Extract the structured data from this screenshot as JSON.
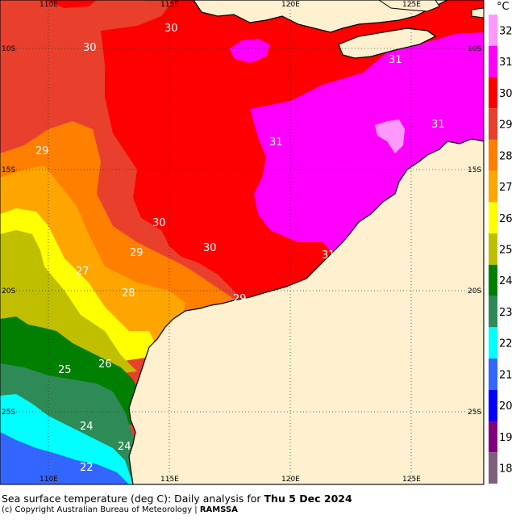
{
  "map": {
    "unit_label": "°C",
    "lon_labels_top": [
      "110E",
      "115E",
      "120E",
      "125E"
    ],
    "lon_labels_bottom": [
      "110E",
      "115E",
      "120E",
      "125E"
    ],
    "lat_labels_left": [
      "10S",
      "15S",
      "20S",
      "25S"
    ],
    "lat_labels_right": [
      "10S",
      "15S",
      "20S",
      "25S"
    ],
    "contour_labels": [
      "30",
      "30",
      "31",
      "29",
      "31",
      "31",
      "30",
      "30",
      "29",
      "27",
      "28",
      "29",
      "26",
      "25",
      "24",
      "24",
      "22",
      "31"
    ],
    "colorbar_labels": [
      "32",
      "31",
      "30",
      "29",
      "28",
      "27",
      "26",
      "25",
      "24",
      "23",
      "22",
      "21",
      "20",
      "19",
      "18"
    ],
    "colorbar_colors": [
      "#ff99ff",
      "#ff00ff",
      "#ff0000",
      "#e8402c",
      "#ff7f00",
      "#ffa500",
      "#ffff00",
      "#bfbf00",
      "#007f00",
      "#2e8b57",
      "#00ffff",
      "#3366ff",
      "#0000ff",
      "#800080",
      "#7f5f7f"
    ],
    "land_color": "#fff0d0",
    "grid": "dotted"
  },
  "caption": {
    "prefix": "Sea surface temperature (deg C): Daily analysis for",
    "date": "Thu 5 Dec 2024"
  },
  "copyright": {
    "text": "(c) Copyright Australian Bureau of Meteorology |",
    "brand": "RAMSSA"
  }
}
